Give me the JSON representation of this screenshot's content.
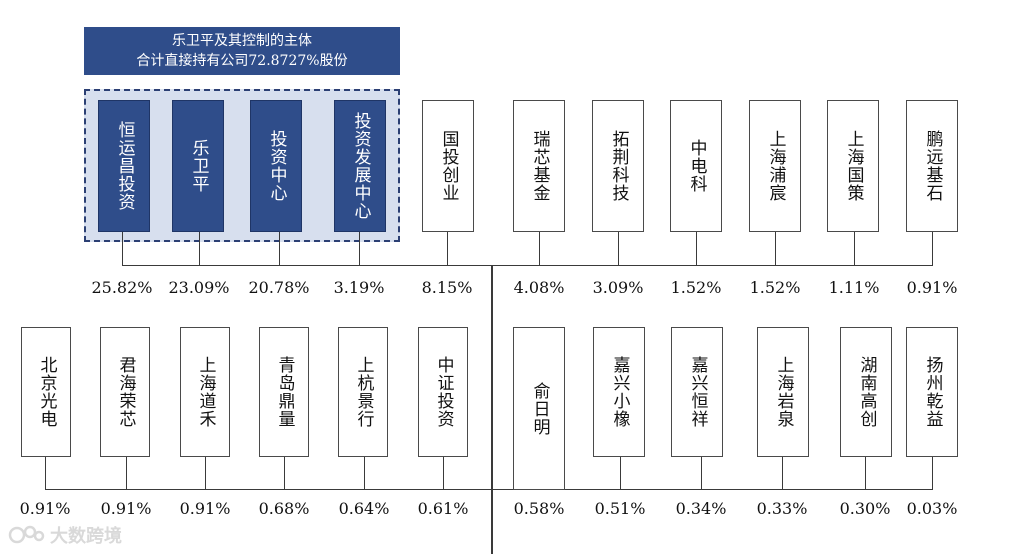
{
  "banner": {
    "line1": "乐卫平及其控制的主体",
    "line2": "合计直接持有公司72.8727%股份"
  },
  "top_row": [
    {
      "name": "恒运昌投资",
      "pct": "25.82%",
      "highlight": true
    },
    {
      "name": "乐卫平",
      "pct": "23.09%",
      "highlight": true
    },
    {
      "name": "投资中心",
      "pct": "20.78%",
      "highlight": true
    },
    {
      "name": "投资发展中心",
      "pct": "3.19%",
      "highlight": true
    },
    {
      "name": "国投创业",
      "pct": "8.15%",
      "highlight": false
    },
    {
      "name": "瑞芯基金",
      "pct": "4.08%",
      "highlight": false
    },
    {
      "name": "拓荆科技",
      "pct": "3.09%",
      "highlight": false
    },
    {
      "name": "中电科",
      "pct": "1.52%",
      "highlight": false
    },
    {
      "name": "上海浦宸",
      "pct": "1.52%",
      "highlight": false
    },
    {
      "name": "上海国策",
      "pct": "1.11%",
      "highlight": false
    },
    {
      "name": "鹏远基石",
      "pct": "0.91%",
      "highlight": false
    }
  ],
  "bottom_row": [
    {
      "name": "北京光电",
      "pct": "0.91%"
    },
    {
      "name": "君海荣芯",
      "pct": "0.91%"
    },
    {
      "name": "上海道禾",
      "pct": "0.91%"
    },
    {
      "name": "青岛鼎量",
      "pct": "0.68%"
    },
    {
      "name": "上杭景行",
      "pct": "0.64%"
    },
    {
      "name": "中证投资",
      "pct": "0.61%"
    },
    {
      "name": "俞日明",
      "pct": "0.58%"
    },
    {
      "name": "嘉兴小橡",
      "pct": "0.51%"
    },
    {
      "name": "嘉兴恒祥",
      "pct": "0.34%"
    },
    {
      "name": "上海岩泉",
      "pct": "0.33%"
    },
    {
      "name": "湖南高创",
      "pct": "0.30%"
    },
    {
      "name": "扬州乾益",
      "pct": "0.03%"
    }
  ],
  "watermark": {
    "text": "大数跨境",
    "icon": "watermark-logo-icon"
  }
}
